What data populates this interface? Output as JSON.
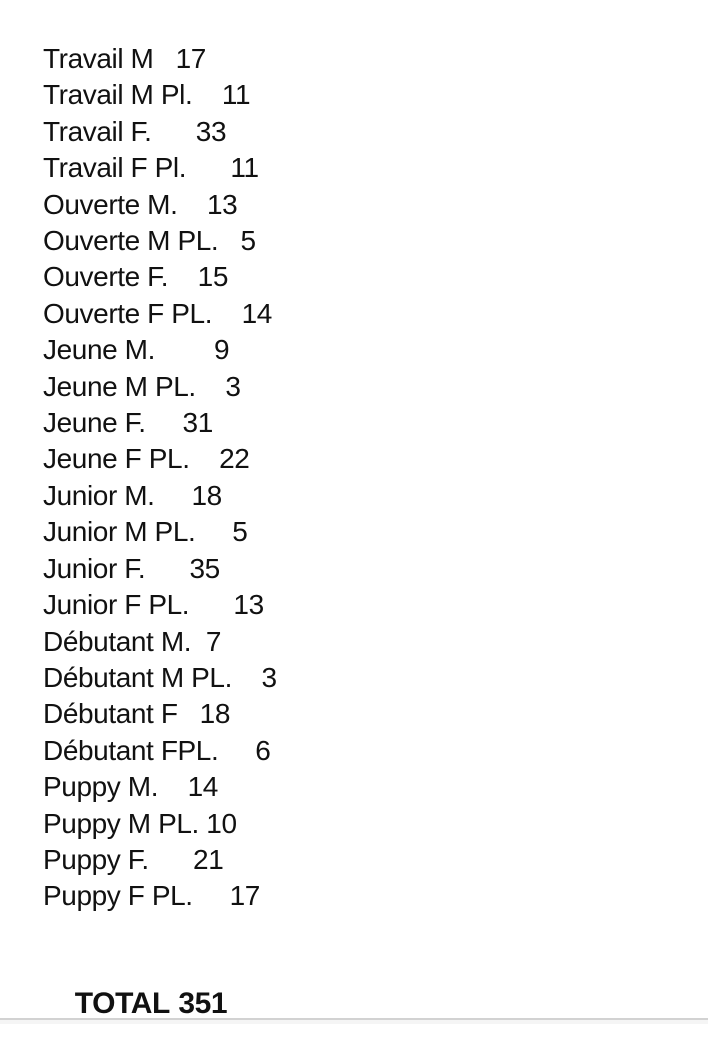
{
  "page": {
    "background": "#ffffff",
    "text_color": "#111111",
    "bottom_divider_color": "#d2d2d2",
    "bottom_strip_color": "#f5f5f5"
  },
  "list": {
    "rows": [
      {
        "label": "Travail M",
        "value": "17",
        "text": "Travail M   17"
      },
      {
        "label": "Travail M Pl.",
        "value": "11",
        "text": "Travail M Pl.    11"
      },
      {
        "label": "Travail F.",
        "value": "33",
        "text": "Travail F.      33"
      },
      {
        "label": "Travail F Pl.",
        "value": "11",
        "text": "Travail F Pl.      11"
      },
      {
        "label": "Ouverte M.",
        "value": "13",
        "text": "Ouverte M.    13"
      },
      {
        "label": "Ouverte M PL.",
        "value": "5",
        "text": "Ouverte M PL.   5"
      },
      {
        "label": "Ouverte F.",
        "value": "15",
        "text": "Ouverte F.    15"
      },
      {
        "label": "Ouverte F PL.",
        "value": "14",
        "text": "Ouverte F PL.    14"
      },
      {
        "label": "Jeune M.",
        "value": "9",
        "text": "Jeune M.        9"
      },
      {
        "label": "Jeune M PL.",
        "value": "3",
        "text": "Jeune M PL.    3"
      },
      {
        "label": "Jeune F.",
        "value": "31",
        "text": "Jeune F.     31"
      },
      {
        "label": "Jeune F PL.",
        "value": "22",
        "text": "Jeune F PL.    22"
      },
      {
        "label": "Junior M.",
        "value": "18",
        "text": "Junior M.     18"
      },
      {
        "label": "Junior M PL.",
        "value": "5",
        "text": "Junior M PL.     5"
      },
      {
        "label": "Junior F.",
        "value": "35",
        "text": "Junior F.      35"
      },
      {
        "label": "Junior F PL.",
        "value": "13",
        "text": "Junior F PL.      13"
      },
      {
        "label": "Débutant M.",
        "value": "7",
        "text": "Débutant M.  7"
      },
      {
        "label": "Débutant M PL.",
        "value": "3",
        "text": "Débutant M PL.    3"
      },
      {
        "label": "Débutant F",
        "value": "18",
        "text": "Débutant F   18"
      },
      {
        "label": "Débutant FPL.",
        "value": "6",
        "text": "Débutant FPL.     6"
      },
      {
        "label": "Puppy M.",
        "value": "14",
        "text": "Puppy M.    14"
      },
      {
        "label": "Puppy M PL.",
        "value": "10",
        "text": "Puppy M PL. 10"
      },
      {
        "label": "Puppy F.",
        "value": "21",
        "text": "Puppy F.      21"
      },
      {
        "label": "Puppy F PL.",
        "value": "17",
        "text": "Puppy F PL.     17"
      }
    ]
  },
  "total": {
    "label": "TOTAL",
    "value": "351"
  }
}
